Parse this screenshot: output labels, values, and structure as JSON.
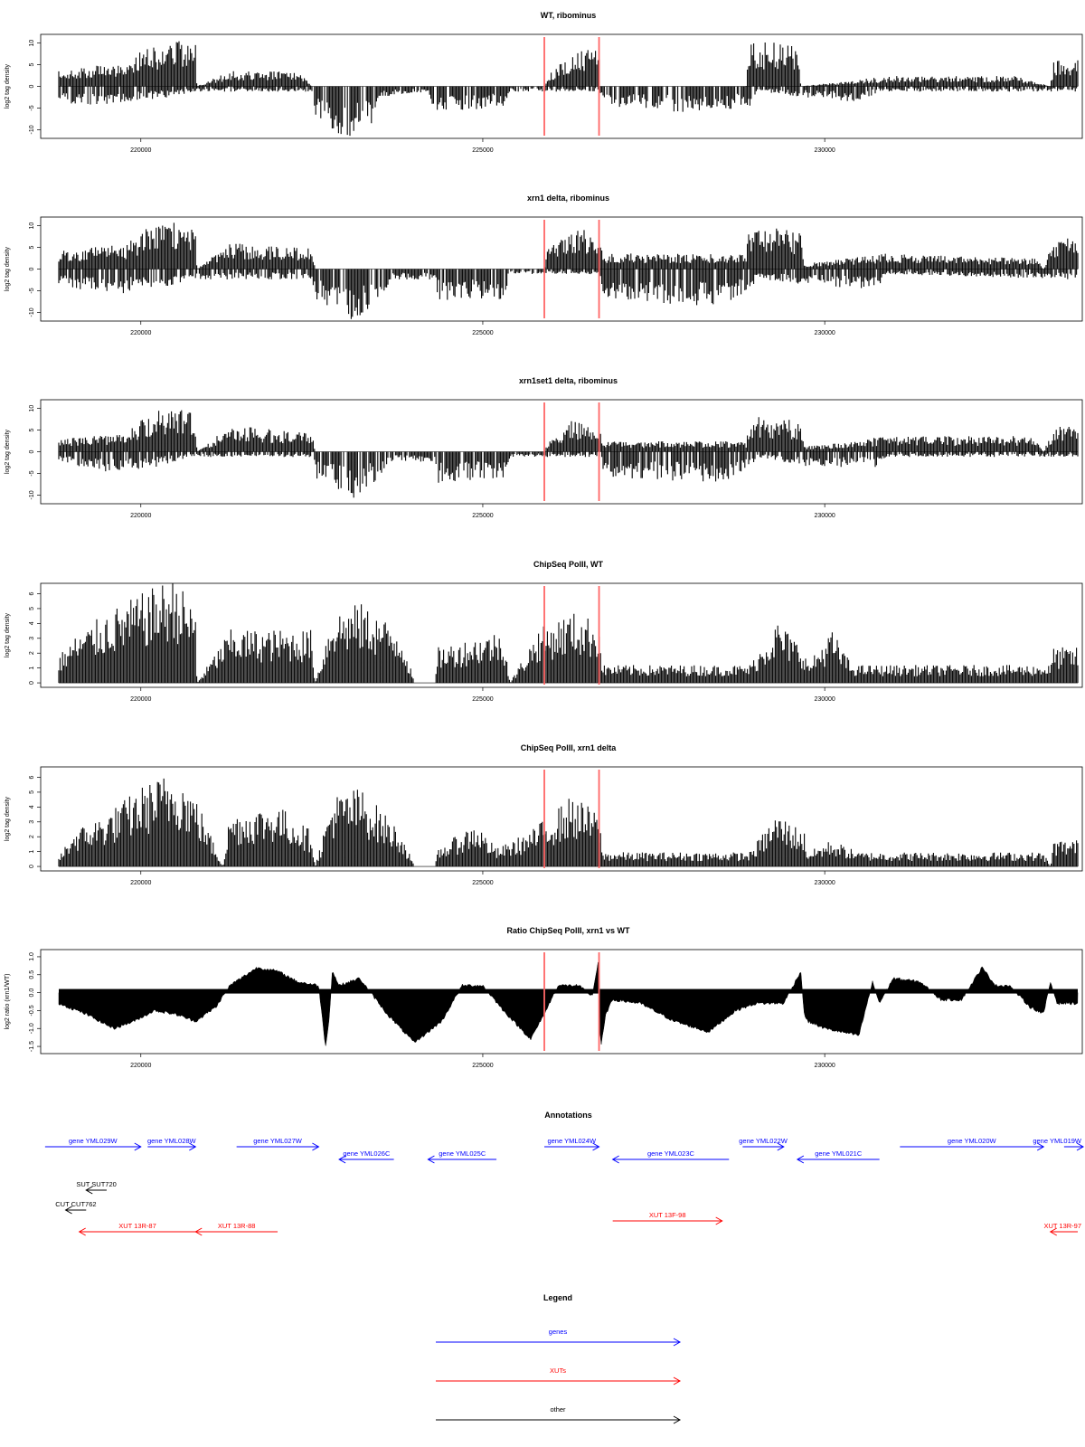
{
  "x_ticks": [
    220000,
    225000,
    230000
  ],
  "x_range": [
    218800,
    233700
  ],
  "red_lines_x": [
    225900,
    226700
  ],
  "colors": {
    "bar": "#000000",
    "redline": "#ff6666",
    "gene": "#0000ff",
    "xut": "#ff0000",
    "other": "#000000"
  },
  "chart_data": [
    {
      "type": "bar",
      "title": "WT, ribominus",
      "ylabel": "log2 tag density",
      "ylim": [
        -12,
        12
      ],
      "yticks": [
        -10,
        -5,
        0,
        5,
        10
      ],
      "ytick_labels": [
        "-10",
        "-5",
        "0",
        "5",
        "10"
      ],
      "profile_pos": [
        [
          218800,
          3
        ],
        [
          219300,
          4
        ],
        [
          219800,
          4
        ],
        [
          220050,
          8
        ],
        [
          220500,
          9
        ],
        [
          220800,
          8
        ],
        [
          220820,
          0
        ],
        [
          221300,
          3
        ],
        [
          222300,
          3
        ],
        [
          222500,
          0
        ],
        [
          225900,
          0
        ],
        [
          225950,
          2
        ],
        [
          226300,
          7
        ],
        [
          226700,
          7
        ],
        [
          226720,
          0
        ],
        [
          228850,
          0
        ],
        [
          228900,
          9
        ],
        [
          229600,
          8
        ],
        [
          229650,
          0
        ],
        [
          230950,
          2
        ],
        [
          232800,
          2
        ],
        [
          233300,
          0
        ],
        [
          233350,
          5
        ],
        [
          233700,
          5
        ]
      ],
      "profile_neg": [
        [
          218800,
          -3
        ],
        [
          219300,
          -4
        ],
        [
          219800,
          -3
        ],
        [
          220500,
          -2
        ],
        [
          220800,
          -1
        ],
        [
          222500,
          -1
        ],
        [
          222550,
          -6
        ],
        [
          223000,
          -10
        ],
        [
          223400,
          -7
        ],
        [
          223500,
          -2
        ],
        [
          224200,
          -1
        ],
        [
          224250,
          -5
        ],
        [
          225300,
          -4
        ],
        [
          225400,
          -1
        ],
        [
          226700,
          -1
        ],
        [
          226800,
          -4
        ],
        [
          228000,
          -5
        ],
        [
          228900,
          -4
        ],
        [
          229000,
          -1
        ],
        [
          229650,
          -2
        ],
        [
          230500,
          -3
        ],
        [
          230800,
          -1
        ],
        [
          233700,
          -1
        ]
      ]
    },
    {
      "type": "bar",
      "title": "xrn1 delta, ribominus",
      "ylabel": "log2 tag density",
      "ylim": [
        -12,
        12
      ],
      "yticks": [
        -10,
        -5,
        0,
        5,
        10
      ],
      "ytick_labels": [
        "-10",
        "-5",
        "0",
        "5",
        "10"
      ],
      "profile_pos": [
        [
          218800,
          3.5
        ],
        [
          219800,
          5
        ],
        [
          220050,
          8
        ],
        [
          220500,
          9
        ],
        [
          220800,
          8
        ],
        [
          220820,
          0
        ],
        [
          221300,
          5
        ],
        [
          222500,
          4
        ],
        [
          222550,
          0
        ],
        [
          225900,
          0
        ],
        [
          225950,
          4
        ],
        [
          226300,
          8
        ],
        [
          226700,
          7
        ],
        [
          226750,
          3
        ],
        [
          228850,
          3
        ],
        [
          228900,
          9
        ],
        [
          229650,
          7
        ],
        [
          229700,
          1
        ],
        [
          230900,
          3
        ],
        [
          233100,
          2
        ],
        [
          233200,
          0
        ],
        [
          233350,
          6
        ],
        [
          233700,
          6
        ]
      ],
      "profile_neg": [
        [
          218800,
          -3
        ],
        [
          219500,
          -5
        ],
        [
          220200,
          -4
        ],
        [
          220800,
          -2
        ],
        [
          222500,
          -2
        ],
        [
          222550,
          -6
        ],
        [
          223100,
          -10
        ],
        [
          223400,
          -7
        ],
        [
          223700,
          -2
        ],
        [
          224300,
          -2
        ],
        [
          224350,
          -6
        ],
        [
          225300,
          -6
        ],
        [
          225400,
          -1
        ],
        [
          226700,
          -1
        ],
        [
          226800,
          -7
        ],
        [
          228500,
          -7
        ],
        [
          228900,
          -5
        ],
        [
          229000,
          -2
        ],
        [
          229700,
          -3
        ],
        [
          230800,
          -4
        ],
        [
          230900,
          -1
        ],
        [
          233700,
          -2
        ]
      ]
    },
    {
      "type": "bar",
      "title": "xrn1set1 delta, ribominus",
      "ylabel": "log2 tag density",
      "ylim": [
        -12,
        12
      ],
      "yticks": [
        -10,
        -5,
        0,
        5,
        10
      ],
      "ytick_labels": [
        "-10",
        "-5",
        "0",
        "5",
        "10"
      ],
      "profile_pos": [
        [
          218800,
          2.5
        ],
        [
          219800,
          3.5
        ],
        [
          220050,
          7
        ],
        [
          220500,
          9
        ],
        [
          220800,
          7
        ],
        [
          220820,
          0
        ],
        [
          221300,
          5
        ],
        [
          222500,
          4
        ],
        [
          222550,
          0
        ],
        [
          225900,
          0
        ],
        [
          225950,
          2
        ],
        [
          226300,
          6
        ],
        [
          226700,
          5
        ],
        [
          226750,
          2
        ],
        [
          228850,
          2
        ],
        [
          228900,
          7
        ],
        [
          229650,
          6
        ],
        [
          229700,
          1
        ],
        [
          230900,
          3
        ],
        [
          233100,
          3
        ],
        [
          233200,
          0
        ],
        [
          233350,
          5
        ],
        [
          233700,
          5
        ]
      ],
      "profile_neg": [
        [
          218800,
          -2
        ],
        [
          219500,
          -4
        ],
        [
          220200,
          -3
        ],
        [
          220800,
          -1
        ],
        [
          222500,
          -1
        ],
        [
          222550,
          -5
        ],
        [
          223100,
          -9
        ],
        [
          223400,
          -6
        ],
        [
          223700,
          -2
        ],
        [
          224300,
          -2
        ],
        [
          224350,
          -6
        ],
        [
          225300,
          -5
        ],
        [
          225400,
          -1
        ],
        [
          226700,
          -1
        ],
        [
          226800,
          -5
        ],
        [
          228500,
          -6
        ],
        [
          228900,
          -4
        ],
        [
          229000,
          -1
        ],
        [
          229700,
          -3
        ],
        [
          230800,
          -3
        ],
        [
          230900,
          -1
        ],
        [
          233700,
          -1
        ]
      ]
    },
    {
      "type": "bar",
      "title": "ChipSeq PolII, WT",
      "ylabel": "log2 tag density",
      "ylim": [
        -0.3,
        6.7
      ],
      "yticks": [
        0,
        1,
        2,
        3,
        4,
        5,
        6
      ],
      "ytick_labels": [
        "0",
        "1",
        "2",
        "3",
        "4",
        "5",
        "6"
      ],
      "profile_pos": [
        [
          218800,
          1.5
        ],
        [
          219000,
          2.5
        ],
        [
          219500,
          4
        ],
        [
          220000,
          5
        ],
        [
          220500,
          6
        ],
        [
          220800,
          4
        ],
        [
          220820,
          0
        ],
        [
          221300,
          3
        ],
        [
          222500,
          3
        ],
        [
          222550,
          0
        ],
        [
          222800,
          4
        ],
        [
          223200,
          4.5
        ],
        [
          223800,
          3
        ],
        [
          224000,
          0
        ],
        [
          224300,
          0
        ],
        [
          224350,
          2
        ],
        [
          225300,
          3
        ],
        [
          225400,
          0
        ],
        [
          225800,
          3
        ],
        [
          226300,
          4
        ],
        [
          226700,
          3.5
        ],
        [
          226750,
          1
        ],
        [
          228900,
          1
        ],
        [
          229300,
          3.5
        ],
        [
          229700,
          2
        ],
        [
          229750,
          1
        ],
        [
          230100,
          3
        ],
        [
          230400,
          1
        ],
        [
          233300,
          1
        ],
        [
          233350,
          2
        ],
        [
          233700,
          2
        ]
      ],
      "profile_neg": []
    },
    {
      "type": "bar",
      "title": "ChipSeq PolII, xrn1 delta",
      "ylabel": "log2 tag density",
      "ylim": [
        -0.3,
        6.7
      ],
      "yticks": [
        0,
        1,
        2,
        3,
        4,
        5,
        6
      ],
      "ytick_labels": [
        "0",
        "1",
        "2",
        "3",
        "4",
        "5",
        "6"
      ],
      "profile_pos": [
        [
          218800,
          0.5
        ],
        [
          219000,
          2
        ],
        [
          219500,
          3
        ],
        [
          220000,
          4.5
        ],
        [
          220500,
          5.5
        ],
        [
          220800,
          4
        ],
        [
          221200,
          0
        ],
        [
          221300,
          3
        ],
        [
          222000,
          3.5
        ],
        [
          222500,
          2
        ],
        [
          222550,
          0
        ],
        [
          222800,
          4
        ],
        [
          223200,
          4.5
        ],
        [
          223800,
          2
        ],
        [
          224000,
          0
        ],
        [
          224300,
          0
        ],
        [
          224350,
          1
        ],
        [
          224900,
          2.5
        ],
        [
          225200,
          1
        ],
        [
          225700,
          2
        ],
        [
          226300,
          4
        ],
        [
          226700,
          3
        ],
        [
          226750,
          0.8
        ],
        [
          228900,
          0.8
        ],
        [
          229300,
          3
        ],
        [
          229700,
          2
        ],
        [
          229750,
          0.8
        ],
        [
          230100,
          1.5
        ],
        [
          230500,
          0.8
        ],
        [
          233200,
          0.8
        ],
        [
          233300,
          0
        ],
        [
          233350,
          1.5
        ],
        [
          233700,
          1.5
        ]
      ],
      "profile_neg": []
    },
    {
      "type": "area",
      "title": "Ratio ChipSeq PolII, xrn1 vs WT",
      "ylabel": "log2 ratio (xrn1/WT)",
      "ylim": [
        -1.7,
        1.2
      ],
      "yticks": [
        -1.5,
        -1.0,
        -0.5,
        0.0,
        0.5,
        1.0
      ],
      "ytick_labels": [
        "-1.5",
        "-1.0",
        "-0.5",
        "0.0",
        "0.5",
        "1.0"
      ],
      "x": [
        218800,
        219200,
        219600,
        219900,
        220200,
        220500,
        220800,
        221100,
        221300,
        221700,
        222000,
        222300,
        222600,
        222700,
        222750,
        222800,
        222900,
        223200,
        223600,
        224000,
        224400,
        224700,
        225000,
        225300,
        225700,
        225900,
        226100,
        226400,
        226600,
        226700,
        226720,
        226800,
        226900,
        227300,
        227800,
        228300,
        228700,
        229000,
        229400,
        229650,
        229700,
        229750,
        230000,
        230500,
        230700,
        230800,
        231000,
        231400,
        231700,
        232000,
        232300,
        232500,
        232700,
        233000,
        233200,
        233300,
        233400,
        233700
      ],
      "y": [
        -0.3,
        -0.6,
        -1.0,
        -0.8,
        -0.5,
        -0.6,
        -0.8,
        -0.4,
        0.2,
        0.7,
        0.6,
        0.3,
        0.2,
        -1.5,
        -0.8,
        0.6,
        0.2,
        0.4,
        -0.6,
        -1.4,
        -0.8,
        0.2,
        0.2,
        -0.5,
        -1.3,
        -0.6,
        0.2,
        0.2,
        -0.1,
        1.0,
        -1.6,
        -0.6,
        -0.2,
        -0.3,
        -0.8,
        -1.1,
        -0.5,
        -0.3,
        -0.3,
        0.6,
        -0.6,
        -0.8,
        -1.0,
        -1.2,
        0.3,
        -0.3,
        0.4,
        0.3,
        -0.2,
        -0.2,
        0.7,
        0.2,
        0.2,
        -0.4,
        -0.6,
        0.3,
        -0.3,
        -0.3
      ]
    }
  ],
  "annotations": {
    "title": "Annotations",
    "items": [
      {
        "label": "gene YML029W",
        "type": "gene",
        "start": 218600,
        "end": 220000,
        "strand": "+",
        "row": 0
      },
      {
        "label": "gene YML028W",
        "type": "gene",
        "start": 220100,
        "end": 220800,
        "strand": "+",
        "row": 0
      },
      {
        "label": "gene YML027W",
        "type": "gene",
        "start": 221400,
        "end": 222600,
        "strand": "+",
        "row": 0
      },
      {
        "label": "gene YML026C",
        "type": "gene",
        "start": 222900,
        "end": 223700,
        "strand": "-",
        "row": 1
      },
      {
        "label": "gene YML025C",
        "type": "gene",
        "start": 224200,
        "end": 225200,
        "strand": "-",
        "row": 1
      },
      {
        "label": "gene YML024W",
        "type": "gene",
        "start": 225900,
        "end": 226700,
        "strand": "+",
        "row": 0
      },
      {
        "label": "gene YML023C",
        "type": "gene",
        "start": 226900,
        "end": 228600,
        "strand": "-",
        "row": 1
      },
      {
        "label": "gene YML022W",
        "type": "gene",
        "start": 228800,
        "end": 229400,
        "strand": "+",
        "row": 0
      },
      {
        "label": "gene YML021C",
        "type": "gene",
        "start": 229600,
        "end": 230800,
        "strand": "-",
        "row": 1
      },
      {
        "label": "gene YML020W",
        "type": "gene",
        "start": 231100,
        "end": 233200,
        "strand": "+",
        "row": 0
      },
      {
        "label": "gene YML019W",
        "type": "gene",
        "start": 233500,
        "end": 234300,
        "strand": "+",
        "row": 0
      },
      {
        "label": "SUT SUT720",
        "type": "other",
        "start": 219200,
        "end": 219500,
        "strand": "-",
        "row": 2
      },
      {
        "label": "CUT CUT762",
        "type": "other",
        "start": 218900,
        "end": 219200,
        "strand": "-",
        "row": 3
      },
      {
        "label": "XUT 13R-87",
        "type": "xut",
        "start": 219100,
        "end": 220800,
        "strand": "-",
        "row": 4
      },
      {
        "label": "XUT 13R-88",
        "type": "xut",
        "start": 220800,
        "end": 222000,
        "strand": "-",
        "row": 4
      },
      {
        "label": "XUT 13F-98",
        "type": "xut",
        "start": 226900,
        "end": 228500,
        "strand": "+",
        "row": 5
      },
      {
        "label": "XUT 13R-97",
        "type": "xut",
        "start": 233300,
        "end": 233700,
        "strand": "-",
        "row": 4
      }
    ]
  },
  "legend": {
    "title": "Legend",
    "items": [
      {
        "label": "genes",
        "type": "gene"
      },
      {
        "label": "XUTs",
        "type": "xut"
      },
      {
        "label": "other",
        "type": "other"
      }
    ]
  }
}
